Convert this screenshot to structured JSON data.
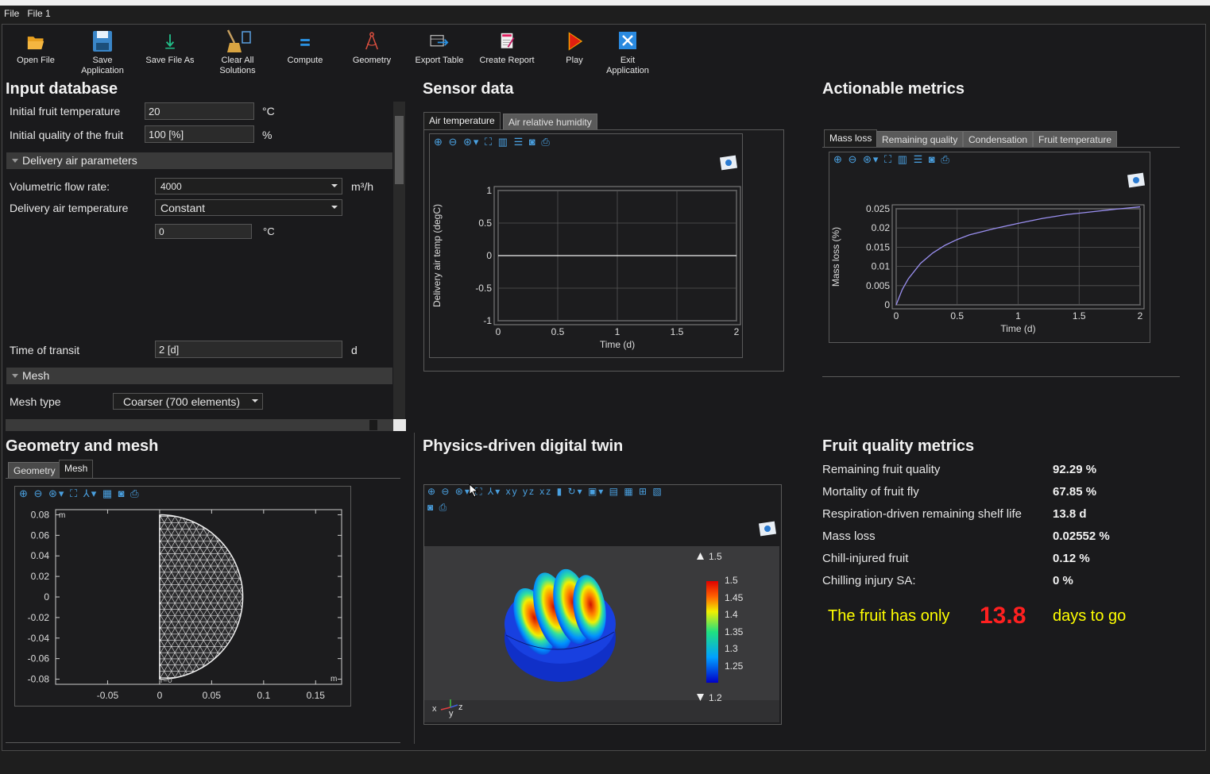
{
  "menu": [
    "File",
    "File 1"
  ],
  "toolbar": {
    "open": "Open File",
    "save": "Save Application",
    "save_as": "Save File As",
    "clear": "Clear All Solutions",
    "compute": "Compute",
    "geometry": "Geometry",
    "export": "Export Table",
    "report": "Create Report",
    "play": "Play",
    "exit": "Exit Application"
  },
  "input": {
    "title": "Input database",
    "initial_temp_label": "Initial fruit temperature",
    "initial_temp_value": "20",
    "initial_temp_unit": "°C",
    "initial_quality_label": "Initial quality of the fruit",
    "initial_quality_value": "100 [%]",
    "initial_quality_unit": "%",
    "delivery_section": "Delivery air parameters",
    "flow_label": "Volumetric flow rate:",
    "flow_value": "4000",
    "flow_unit": "m³/h",
    "air_temp_label": "Delivery air temperature",
    "air_temp_mode": "Constant",
    "air_temp_value": "0",
    "air_temp_unit": "°C",
    "transit_label": "Time of transit",
    "transit_value": "2 [d]",
    "transit_unit": "d",
    "mesh_section": "Mesh",
    "mesh_type_label": "Mesh type",
    "mesh_type_value": "Coarser (700 elements)"
  },
  "sensor": {
    "title": "Sensor data",
    "tabs": [
      "Air temperature",
      "Air relative humidity"
    ],
    "chart_data": {
      "type": "line",
      "xlabel": "Time (d)",
      "ylabel": "Delivery air temp (degC)",
      "xlim": [
        0,
        2
      ],
      "ylim": [
        -1,
        1
      ],
      "x_ticks": [
        "0",
        "0.5",
        "1",
        "1.5",
        "2"
      ],
      "y_ticks": [
        "1",
        "0.5",
        "0",
        "-0.5",
        "-1"
      ],
      "x": [
        0,
        2
      ],
      "y": [
        0,
        0
      ],
      "grid": true
    }
  },
  "actionable": {
    "title": "Actionable metrics",
    "tabs": [
      "Mass loss",
      "Remaining quality",
      "Condensation",
      "Fruit temperature"
    ],
    "chart_data": {
      "type": "line",
      "xlabel": "Time (d)",
      "ylabel": "Mass loss (%)",
      "xlim": [
        0,
        2
      ],
      "ylim": [
        0,
        0.025
      ],
      "x_ticks": [
        "0",
        "0.5",
        "1",
        "1.5",
        "2"
      ],
      "y_ticks": [
        "0.025",
        "0.02",
        "0.015",
        "0.01",
        "0.005",
        "0"
      ],
      "x": [
        0,
        0.05,
        0.1,
        0.2,
        0.3,
        0.4,
        0.5,
        0.6,
        0.8,
        1.0,
        1.2,
        1.4,
        1.6,
        1.8,
        2.0
      ],
      "y": [
        0,
        0.004,
        0.0068,
        0.0108,
        0.0135,
        0.0155,
        0.017,
        0.0182,
        0.0198,
        0.0212,
        0.0225,
        0.0235,
        0.0242,
        0.0249,
        0.0255
      ],
      "color": "#9a8ff0",
      "grid": true
    }
  },
  "geomesh": {
    "title": "Geometry and mesh",
    "tabs": [
      "Geometry",
      "Mesh"
    ],
    "unit": "m",
    "x_ticks": [
      "-0.05",
      "0",
      "0.05",
      "0.1",
      "0.15"
    ],
    "y_ticks": [
      "0.08",
      "0.06",
      "0.04",
      "0.02",
      "0",
      "-0.02",
      "-0.04",
      "-0.06",
      "-0.08"
    ],
    "r0": "r=0"
  },
  "twin": {
    "title": "Physics-driven digital twin",
    "max": "1.5",
    "min": "1.2",
    "scale": [
      "1.5",
      "1.45",
      "1.4",
      "1.35",
      "1.3",
      "1.25"
    ],
    "axes": [
      "x",
      "y",
      "z"
    ]
  },
  "quality": {
    "title": "Fruit quality metrics",
    "metrics": [
      {
        "label": "Remaining fruit quality",
        "value": "92.29 %"
      },
      {
        "label": "Mortality of fruit fly",
        "value": "67.85 %"
      },
      {
        "label": "Respiration-driven remaining shelf life",
        "value": "13.8 d"
      },
      {
        "label": "Mass loss",
        "value": "0.02552 %"
      },
      {
        "label": "Chill-injured fruit",
        "value": "0.12 %"
      },
      {
        "label": "Chilling injury SA:",
        "value": "0 %"
      }
    ],
    "banner_pre": "The fruit has only",
    "banner_value": "13.8",
    "banner_post": "days to go",
    "banner_color": "#ffff00",
    "value_color": "#ff2020"
  }
}
